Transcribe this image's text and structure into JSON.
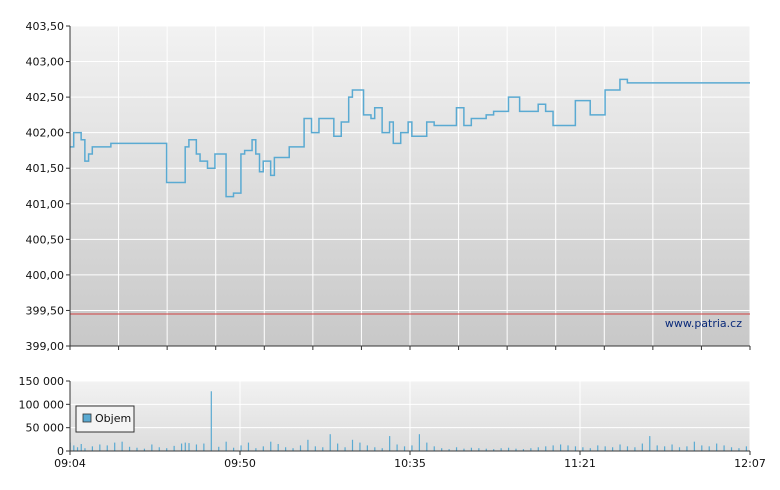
{
  "chart_data": [
    {
      "type": "line",
      "title": "",
      "xlabel": "",
      "ylabel": "",
      "ylim": [
        399.0,
        403.5
      ],
      "y_ticks": [
        "403,50",
        "403,00",
        "402,50",
        "402,00",
        "401,50",
        "401,00",
        "400,50",
        "400,00",
        "399,50",
        "399,00"
      ],
      "grid": true,
      "reference_line": 399.45,
      "watermark": "www.patria.cz",
      "colors": {
        "line": "#5aaad2",
        "reference": "#d04040",
        "grid": "#ffffff",
        "bg_top": "#f2f2f2",
        "bg_bottom": "#c8c8c8"
      },
      "series": [
        {
          "x": [
            "09:04",
            "09:05",
            "09:06",
            "09:07",
            "09:08",
            "09:09",
            "09:10",
            "09:12",
            "09:15",
            "09:20",
            "09:30",
            "09:31",
            "09:35",
            "09:36",
            "09:38",
            "09:39",
            "09:41",
            "09:43",
            "09:45",
            "09:46",
            "09:48",
            "09:50",
            "09:51",
            "09:53",
            "09:54",
            "09:55",
            "09:56",
            "09:58",
            "09:59",
            "10:01",
            "10:03",
            "10:05",
            "10:07",
            "10:09",
            "10:11",
            "10:13",
            "10:15",
            "10:17",
            "10:19",
            "10:20",
            "10:22",
            "10:23",
            "10:25",
            "10:26",
            "10:28",
            "10:30",
            "10:31",
            "10:32",
            "10:33",
            "10:35",
            "10:36",
            "10:38",
            "10:40",
            "10:42",
            "10:43",
            "10:45",
            "10:48",
            "10:50",
            "10:52",
            "10:54",
            "10:56",
            "10:58",
            "11:00",
            "11:02",
            "11:05",
            "11:10",
            "11:12",
            "11:14",
            "11:15",
            "11:20",
            "11:22",
            "11:24",
            "11:26",
            "11:28",
            "11:30",
            "11:32",
            "11:34",
            "11:36",
            "11:38",
            "11:40",
            "11:42",
            "11:44",
            "11:46",
            "11:48",
            "11:50",
            "11:52",
            "11:54",
            "11:56",
            "11:58",
            "12:00",
            "12:02",
            "12:04",
            "12:06",
            "12:07"
          ],
          "y": [
            401.8,
            402.0,
            402.0,
            401.9,
            401.6,
            401.7,
            401.8,
            401.8,
            401.85,
            401.85,
            401.3,
            401.3,
            401.8,
            401.9,
            401.7,
            401.6,
            401.5,
            401.7,
            401.7,
            401.1,
            401.15,
            401.7,
            401.75,
            401.9,
            401.7,
            401.45,
            401.6,
            401.4,
            401.65,
            401.65,
            401.8,
            401.8,
            402.2,
            402.0,
            402.2,
            402.2,
            401.95,
            402.15,
            402.5,
            402.6,
            402.6,
            402.25,
            402.2,
            402.35,
            402.0,
            402.15,
            401.85,
            401.85,
            402.0,
            402.15,
            401.95,
            401.95,
            402.15,
            402.1,
            402.1,
            402.1,
            402.35,
            402.1,
            402.2,
            402.2,
            402.25,
            402.3,
            402.3,
            402.5,
            402.3,
            402.4,
            402.3,
            402.1,
            402.1,
            402.45,
            402.45,
            402.25,
            402.25,
            402.6,
            402.6,
            402.75,
            402.7,
            402.7,
            402.7,
            402.7,
            402.7,
            402.7,
            402.7,
            402.7,
            402.7,
            402.7,
            402.7,
            402.7,
            402.7,
            402.7,
            402.7,
            402.7,
            402.7,
            402.7
          ]
        }
      ]
    },
    {
      "type": "bar",
      "title": "",
      "xlabel": "",
      "ylabel": "",
      "ylim": [
        0,
        150000
      ],
      "y_ticks": [
        "150 000",
        "100 000",
        "50 000",
        "0"
      ],
      "x_ticks": [
        "09:04",
        "09:50",
        "10:35",
        "11:21",
        "12:07"
      ],
      "grid": true,
      "legend": {
        "position": "left",
        "entries": [
          "Objem"
        ]
      },
      "colors": {
        "bar": "#5aaad2",
        "grid": "#ffffff"
      },
      "series": [
        {
          "name": "Objem",
          "x": [
            "09:04",
            "09:05",
            "09:06",
            "09:07",
            "09:08",
            "09:10",
            "09:12",
            "09:14",
            "09:16",
            "09:18",
            "09:20",
            "09:22",
            "09:24",
            "09:26",
            "09:28",
            "09:30",
            "09:32",
            "09:34",
            "09:35",
            "09:36",
            "09:38",
            "09:40",
            "09:42",
            "09:44",
            "09:46",
            "09:48",
            "09:50",
            "09:52",
            "09:54",
            "09:56",
            "09:58",
            "10:00",
            "10:02",
            "10:04",
            "10:06",
            "10:08",
            "10:10",
            "10:12",
            "10:14",
            "10:16",
            "10:18",
            "10:20",
            "10:22",
            "10:24",
            "10:26",
            "10:28",
            "10:30",
            "10:32",
            "10:34",
            "10:36",
            "10:38",
            "10:40",
            "10:42",
            "10:44",
            "10:46",
            "10:48",
            "10:50",
            "10:52",
            "10:54",
            "10:56",
            "10:58",
            "11:00",
            "11:02",
            "11:04",
            "11:06",
            "11:08",
            "11:10",
            "11:12",
            "11:14",
            "11:16",
            "11:18",
            "11:20",
            "11:22",
            "11:24",
            "11:26",
            "11:28",
            "11:30",
            "11:32",
            "11:34",
            "11:36",
            "11:38",
            "11:40",
            "11:42",
            "11:44",
            "11:46",
            "11:48",
            "11:50",
            "11:52",
            "11:54",
            "11:56",
            "11:58",
            "12:00",
            "12:02",
            "12:04",
            "12:06"
          ],
          "values": [
            18000,
            12000,
            8000,
            15000,
            6000,
            10000,
            14000,
            12000,
            18000,
            20000,
            9000,
            7000,
            5000,
            14000,
            8000,
            6000,
            11000,
            16000,
            18000,
            17000,
            14000,
            16000,
            128000,
            9000,
            20000,
            7000,
            12000,
            18000,
            6000,
            10000,
            20000,
            15000,
            8000,
            6000,
            12000,
            24000,
            10000,
            8000,
            36000,
            16000,
            8000,
            24000,
            18000,
            12000,
            8000,
            6000,
            32000,
            14000,
            10000,
            12000,
            36000,
            18000,
            10000,
            6000,
            4000,
            8000,
            5000,
            7000,
            6000,
            5000,
            4000,
            6000,
            7000,
            5000,
            4000,
            6000,
            8000,
            10000,
            12000,
            14000,
            12000,
            10000,
            8000,
            6000,
            12000,
            10000,
            8000,
            14000,
            10000,
            8000,
            16000,
            32000,
            12000,
            10000,
            14000,
            8000,
            10000,
            20000,
            12000,
            10000,
            16000,
            12000,
            8000,
            6000,
            10000
          ]
        }
      ]
    }
  ]
}
